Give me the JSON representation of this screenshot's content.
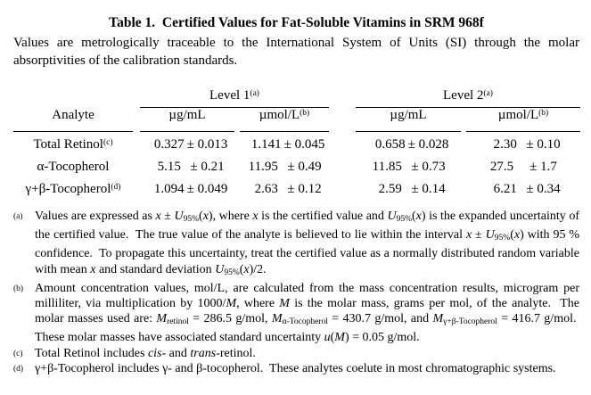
{
  "title": "Table 1.  Certified Values for Fat-Soluble Vitamins in SRM 968f",
  "intro": "Values are metrologically traceable to the International System of Units (SI) through the molar absorptivities of the calibration standards.",
  "table": {
    "analyte_header": "Analyte",
    "level_headers": [
      {
        "label": "Level 1",
        "sup": "(a)"
      },
      {
        "label": "Level 2",
        "sup": "(a)"
      }
    ],
    "unit_headers": [
      {
        "label": "µg/mL",
        "sup": ""
      },
      {
        "label": "µmol/L",
        "sup": "(b)"
      },
      {
        "label": "µg/mL",
        "sup": ""
      },
      {
        "label": "µmol/L",
        "sup": "(b)"
      }
    ],
    "rows": [
      {
        "analyte": "Total Retinol",
        "sup": "(c)",
        "values": [
          {
            "v": "0.327",
            "u": "± 0.013"
          },
          {
            "v": "1.141",
            "u": "± 0.045"
          },
          {
            "v": "0.658",
            "u": "± 0.028"
          },
          {
            "v": "2.30",
            "u": "± 0.10"
          }
        ]
      },
      {
        "analyte": "α-Tocopherol",
        "sup": "",
        "values": [
          {
            "v": "5.15",
            "u": "± 0.21"
          },
          {
            "v": "11.95",
            "u": "± 0.49"
          },
          {
            "v": "11.85",
            "u": "± 0.73"
          },
          {
            "v": "27.5",
            "u": "± 1.7"
          }
        ]
      },
      {
        "analyte": "γ+β-Tocopherol",
        "sup": "(d)",
        "values": [
          {
            "v": "1.094",
            "u": "± 0.049"
          },
          {
            "v": "2.63",
            "u": "± 0.12"
          },
          {
            "v": "2.59",
            "u": "± 0.14"
          },
          {
            "v": "6.21",
            "u": "± 0.34"
          }
        ]
      }
    ]
  },
  "footnotes": [
    {
      "marker": "(a)",
      "segments": [
        {
          "t": "Values are expressed as "
        },
        {
          "t": "x",
          "s": "i"
        },
        {
          "t": " ± "
        },
        {
          "t": "U",
          "s": "i"
        },
        {
          "t": "95%",
          "s": "sub"
        },
        {
          "t": "("
        },
        {
          "t": "x",
          "s": "i"
        },
        {
          "t": "), where "
        },
        {
          "t": "x",
          "s": "i"
        },
        {
          "t": " is the certified value and "
        },
        {
          "t": "U",
          "s": "i"
        },
        {
          "t": "95%",
          "s": "sub"
        },
        {
          "t": "("
        },
        {
          "t": "x",
          "s": "i"
        },
        {
          "t": ") is the expanded uncertainty of the certified value.  The true value of the analyte is believed to lie within the interval "
        },
        {
          "t": "x",
          "s": "i"
        },
        {
          "t": " ± "
        },
        {
          "t": "U",
          "s": "i"
        },
        {
          "t": "95%",
          "s": "sub"
        },
        {
          "t": "("
        },
        {
          "t": "x",
          "s": "i"
        },
        {
          "t": ") with 95 % confidence.  To propagate this uncertainty, treat the certified value as a normally distributed random variable with mean "
        },
        {
          "t": "x",
          "s": "i"
        },
        {
          "t": " and standard deviation "
        },
        {
          "t": "U",
          "s": "i"
        },
        {
          "t": "95%",
          "s": "sub"
        },
        {
          "t": "("
        },
        {
          "t": "x",
          "s": "i"
        },
        {
          "t": ")/2."
        }
      ]
    },
    {
      "marker": "(b)",
      "segments": [
        {
          "t": "Amount concentration values, mol/L, are calculated from the mass concentration results, microgram per milliliter, via multiplication by 1000/"
        },
        {
          "t": "M",
          "s": "i"
        },
        {
          "t": ", where "
        },
        {
          "t": "M",
          "s": "i"
        },
        {
          "t": " is the molar mass, grams per mol, of the analyte.  The molar masses used are: "
        },
        {
          "t": "M",
          "s": "i"
        },
        {
          "t": "retinol",
          "s": "sub"
        },
        {
          "t": " = 286.5 g/mol, "
        },
        {
          "t": "M",
          "s": "i"
        },
        {
          "t": "α-Tocopherol",
          "s": "sub"
        },
        {
          "t": " = 430.7 g/mol, and "
        },
        {
          "t": "M",
          "s": "i"
        },
        {
          "t": "γ+β-Tocopherol",
          "s": "sub"
        },
        {
          "t": " = 416.7 g/mol.  These molar masses have associated standard uncertainty "
        },
        {
          "t": "u",
          "s": "i"
        },
        {
          "t": "("
        },
        {
          "t": "M",
          "s": "i"
        },
        {
          "t": ") = 0.05 g/mol."
        }
      ]
    },
    {
      "marker": "(c)",
      "segments": [
        {
          "t": "Total Retinol includes "
        },
        {
          "t": "cis",
          "s": "i"
        },
        {
          "t": "- and "
        },
        {
          "t": "trans",
          "s": "i"
        },
        {
          "t": "-retinol."
        }
      ]
    },
    {
      "marker": "(d)",
      "segments": [
        {
          "t": "γ+β-Tocopherol includes γ- and β-tocopherol.  These analytes coelute in most chromatographic systems."
        }
      ]
    }
  ]
}
